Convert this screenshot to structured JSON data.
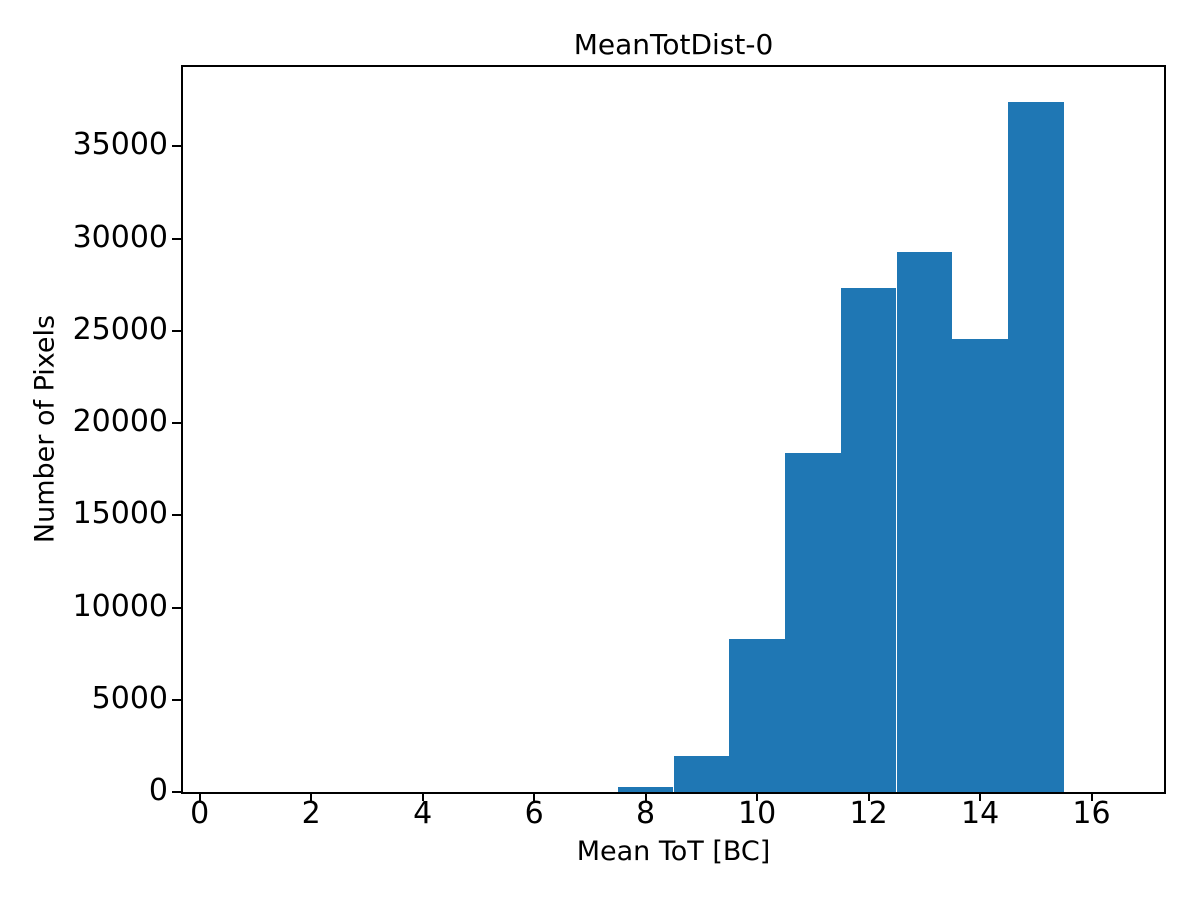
{
  "figure": {
    "title": "MeanTotDist-0",
    "xlabel": "Mean ToT [BC]",
    "ylabel": "Number of Pixels"
  },
  "colors": {
    "bar": "#1f77b4",
    "axis": "#000000",
    "background": "#ffffff",
    "text": "#000000"
  },
  "chart_data": {
    "type": "bar",
    "subtype": "histogram",
    "title": "MeanTotDist-0",
    "xlabel": "Mean ToT [BC]",
    "ylabel": "Number of Pixels",
    "bin_edges": [
      7.5,
      8.5,
      9.5,
      10.5,
      11.5,
      12.5,
      13.5,
      14.5,
      15.5
    ],
    "values": [
      250,
      1950,
      8300,
      18400,
      27350,
      29250,
      24550,
      37400
    ],
    "xlim": [
      -0.3,
      17.3
    ],
    "ylim": [
      0,
      39300
    ],
    "xticks": [
      0,
      2,
      4,
      6,
      8,
      10,
      12,
      14,
      16
    ],
    "yticks": [
      0,
      5000,
      10000,
      15000,
      20000,
      25000,
      30000,
      35000
    ],
    "grid": false,
    "legend": null,
    "bar_color": "#1f77b4"
  }
}
